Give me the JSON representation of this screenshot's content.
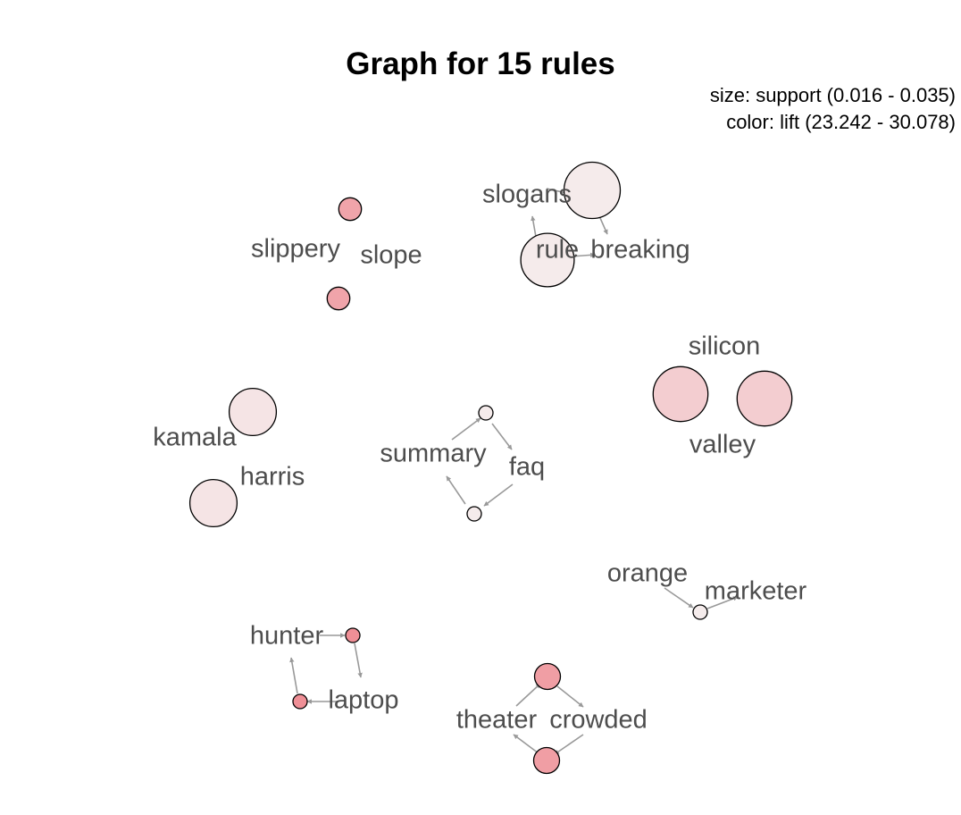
{
  "title": "Graph for 15 rules",
  "legend": {
    "size_text": "size: support (0.016 - 0.035)",
    "color_text": "color: lift (23.242 - 30.078)"
  },
  "colors": {
    "edge": "#999999",
    "label": "#4d4d4d",
    "node_stroke": "#000000",
    "lift_low": "#f5ecec",
    "lift_high": "#ef8f96"
  },
  "items": [
    {
      "id": "slippery",
      "label": "slippery"
    },
    {
      "id": "slope",
      "label": "slope"
    },
    {
      "id": "slogans",
      "label": "slogans"
    },
    {
      "id": "rule",
      "label": "rule"
    },
    {
      "id": "breaking",
      "label": "breaking"
    },
    {
      "id": "silicon",
      "label": "silicon"
    },
    {
      "id": "valley",
      "label": "valley"
    },
    {
      "id": "kamala",
      "label": "kamala"
    },
    {
      "id": "harris",
      "label": "harris"
    },
    {
      "id": "summary",
      "label": "summary"
    },
    {
      "id": "faq",
      "label": "faq"
    },
    {
      "id": "orange",
      "label": "orange"
    },
    {
      "id": "marketer",
      "label": "marketer"
    },
    {
      "id": "hunter",
      "label": "hunter"
    },
    {
      "id": "laptop",
      "label": "laptop"
    },
    {
      "id": "theater",
      "label": "theater"
    },
    {
      "id": "crowded",
      "label": "crowded"
    }
  ],
  "rules": [
    {
      "id": "r1",
      "lhs": [
        "slippery"
      ],
      "rhs": [
        "slope"
      ],
      "support": 0.018,
      "lift": 28.5
    },
    {
      "id": "r2",
      "lhs": [
        "slope"
      ],
      "rhs": [
        "slippery"
      ],
      "support": 0.018,
      "lift": 28.5
    },
    {
      "id": "r3",
      "lhs": [
        "slogans"
      ],
      "rhs": [
        "breaking"
      ],
      "support": 0.035,
      "lift": 23.3
    },
    {
      "id": "r4",
      "lhs": [
        "rule"
      ],
      "rhs": [
        "breaking"
      ],
      "support": 0.033,
      "lift": 23.3
    },
    {
      "id": "r5",
      "lhs": [
        "silicon"
      ],
      "rhs": [
        "valley"
      ],
      "support": 0.034,
      "lift": 25.5
    },
    {
      "id": "r6",
      "lhs": [
        "valley"
      ],
      "rhs": [
        "silicon"
      ],
      "support": 0.034,
      "lift": 25.5
    },
    {
      "id": "r7",
      "lhs": [
        "kamala"
      ],
      "rhs": [
        "harris"
      ],
      "support": 0.029,
      "lift": 23.8
    },
    {
      "id": "r8",
      "lhs": [
        "harris"
      ],
      "rhs": [
        "kamala"
      ],
      "support": 0.029,
      "lift": 23.8
    },
    {
      "id": "r9",
      "lhs": [
        "summary"
      ],
      "rhs": [
        "faq"
      ],
      "support": 0.016,
      "lift": 23.3
    },
    {
      "id": "r10",
      "lhs": [
        "faq"
      ],
      "rhs": [
        "summary"
      ],
      "support": 0.016,
      "lift": 23.3
    },
    {
      "id": "r11",
      "lhs": [
        "orange"
      ],
      "rhs": [
        "marketer"
      ],
      "support": 0.016,
      "lift": 23.242
    },
    {
      "id": "r12",
      "lhs": [
        "hunter"
      ],
      "rhs": [
        "laptop"
      ],
      "support": 0.016,
      "lift": 30.078
    },
    {
      "id": "r13",
      "lhs": [
        "laptop"
      ],
      "rhs": [
        "hunter"
      ],
      "support": 0.016,
      "lift": 30.078
    },
    {
      "id": "r14",
      "lhs": [
        "theater"
      ],
      "rhs": [
        "crowded"
      ],
      "support": 0.019,
      "lift": 29.0
    },
    {
      "id": "r15",
      "lhs": [
        "crowded"
      ],
      "rhs": [
        "theater"
      ],
      "support": 0.019,
      "lift": 29.0
    }
  ]
}
